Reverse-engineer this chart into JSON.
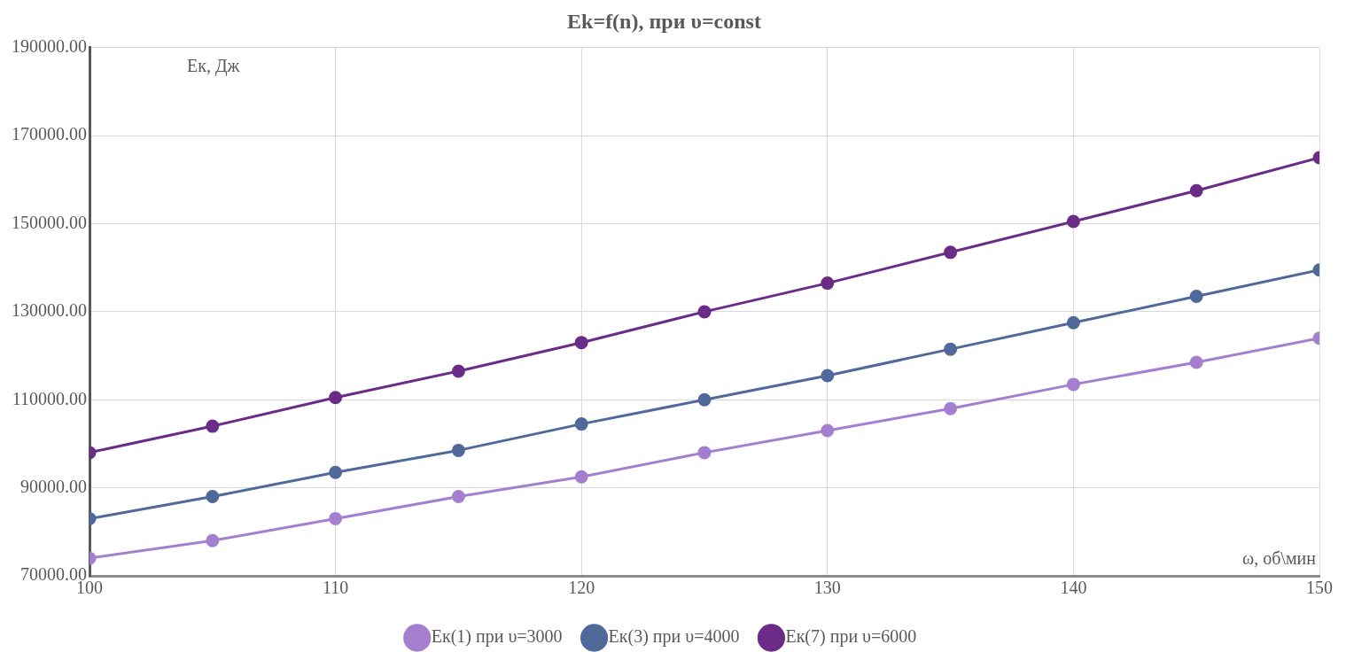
{
  "chart_data": {
    "type": "line",
    "title": "Ek=f(n), при υ=const",
    "xlabel": "ω, об\\мин",
    "ylabel": "Ек, Дж",
    "x": [
      100,
      105,
      110,
      115,
      120,
      125,
      130,
      135,
      140,
      145,
      150
    ],
    "series": [
      {
        "name": "Ек(1) при υ=3000",
        "color": "#a57fcf",
        "values": [
          74000,
          78000,
          83000,
          88000,
          92500,
          98000,
          103000,
          108000,
          113500,
          118500,
          124000
        ]
      },
      {
        "name": "Ек(3) при υ=4000",
        "color": "#4f6a9a",
        "values": [
          83000,
          88000,
          93500,
          98500,
          104500,
          110000,
          115500,
          121500,
          127500,
          133500,
          139500
        ]
      },
      {
        "name": "Ек(7) при υ=6000",
        "color": "#6a2c86",
        "values": [
          98000,
          104000,
          110500,
          116500,
          123000,
          130000,
          136500,
          143500,
          150500,
          157500,
          165000
        ]
      }
    ],
    "xlim": [
      100,
      150
    ],
    "xticks": [
      100,
      110,
      120,
      130,
      140,
      150
    ],
    "ylim": [
      70000,
      190000
    ],
    "yticks": [
      {
        "value": 70000,
        "label": "70000.00"
      },
      {
        "value": 90000,
        "label": "90000.00"
      },
      {
        "value": 110000,
        "label": "110000.00"
      },
      {
        "value": 130000,
        "label": "130000.00"
      },
      {
        "value": 150000,
        "label": "150000.00"
      },
      {
        "value": 170000,
        "label": "170000.00"
      },
      {
        "value": 190000,
        "label": "190000.00"
      }
    ],
    "grid": true,
    "legend": "bottom",
    "marker": "circle",
    "line_style": "solid"
  }
}
